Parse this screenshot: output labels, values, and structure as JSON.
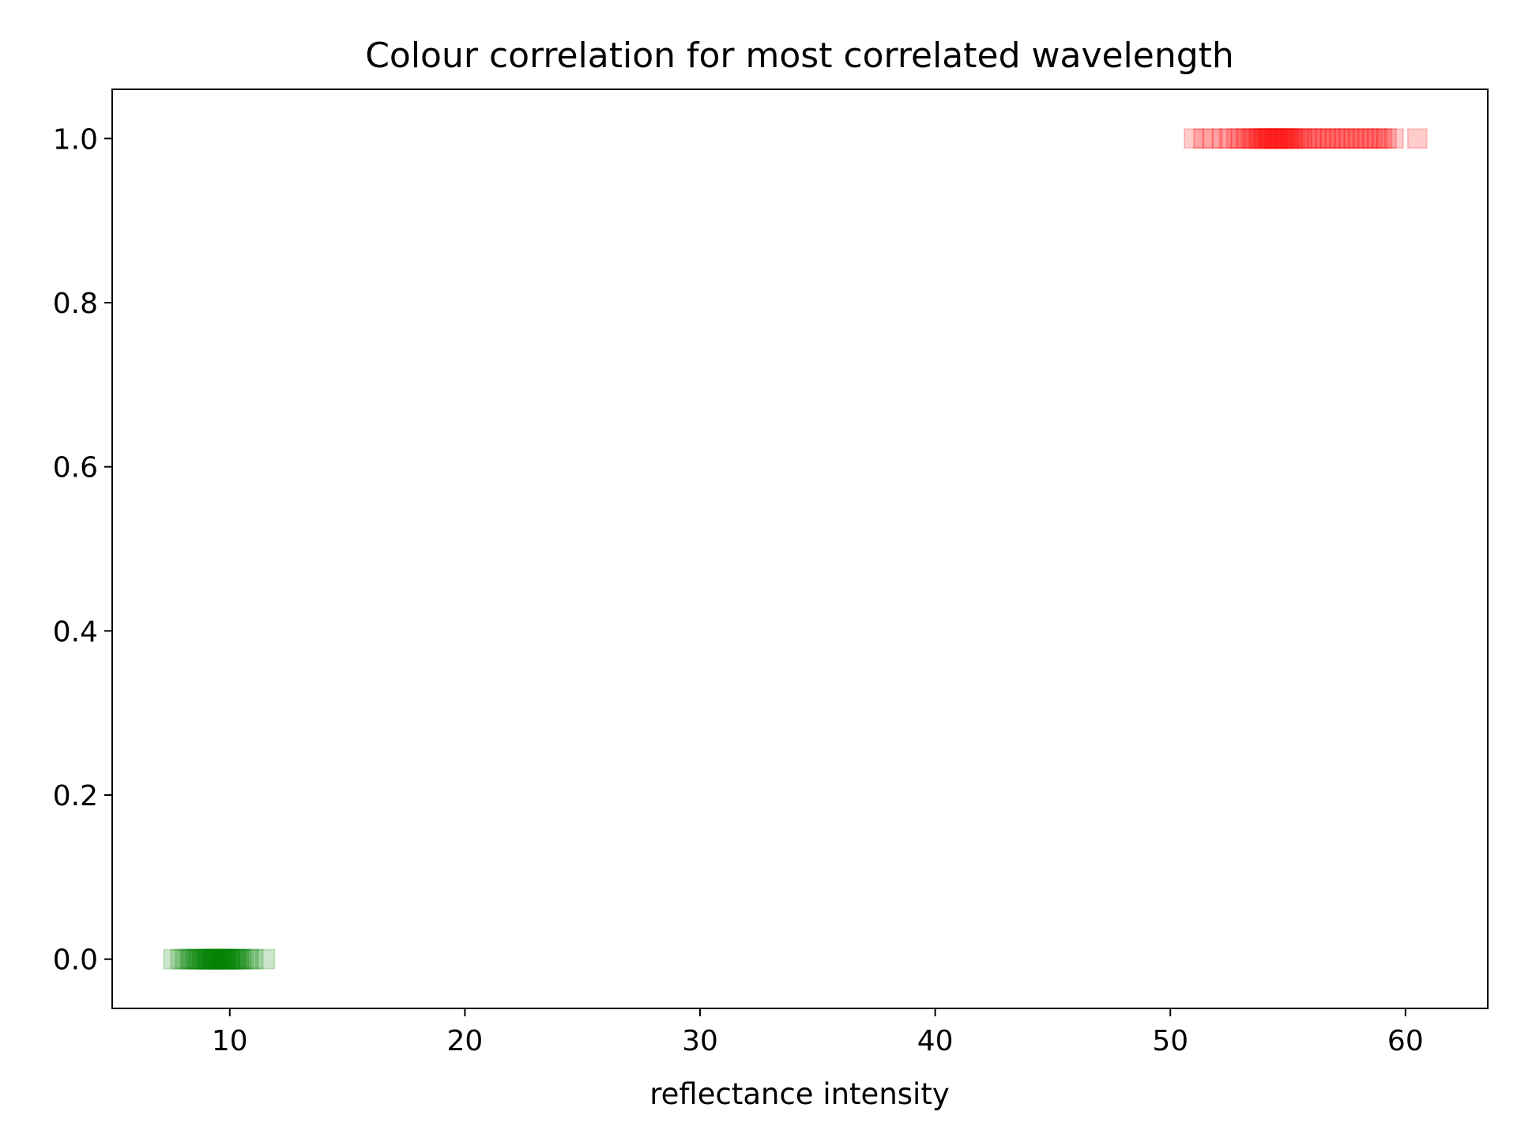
{
  "chart_data": {
    "type": "scatter",
    "title": "Colour correlation for most correlated wavelength",
    "xlabel": "reflectance intensity",
    "ylabel": "",
    "xlim": [
      5,
      63.5
    ],
    "ylim": [
      -0.06,
      1.06
    ],
    "xticks": [
      10,
      20,
      30,
      40,
      50,
      60
    ],
    "yticks": [
      0.0,
      0.2,
      0.4,
      0.6,
      0.8,
      1.0
    ],
    "xtick_labels": [
      "10",
      "20",
      "30",
      "40",
      "50",
      "60"
    ],
    "ytick_labels": [
      "0.0",
      "0.2",
      "0.4",
      "0.6",
      "0.8",
      "1.0"
    ],
    "grid": false,
    "legend": "none",
    "marker": "square",
    "marker_alpha": 0.2,
    "series": [
      {
        "color": "#008000",
        "y": 0,
        "x": [
          7.6,
          7.9,
          8.1,
          8.3,
          8.4,
          8.5,
          8.6,
          8.7,
          8.8,
          8.9,
          9.0,
          9.0,
          9.1,
          9.2,
          9.2,
          9.3,
          9.3,
          9.4,
          9.4,
          9.5,
          9.5,
          9.6,
          9.6,
          9.7,
          9.7,
          9.8,
          9.8,
          9.9,
          10.0,
          10.0,
          10.1,
          10.2,
          10.3,
          10.4,
          10.5,
          10.6,
          10.8,
          11.0,
          11.5
        ]
      },
      {
        "color": "#ff0000",
        "y": 1,
        "x": [
          51.0,
          51.4,
          51.8,
          52.2,
          52.5,
          52.8,
          53.0,
          53.2,
          53.4,
          53.5,
          53.7,
          53.8,
          53.9,
          54.0,
          54.1,
          54.2,
          54.3,
          54.4,
          54.5,
          54.6,
          54.7,
          54.8,
          54.9,
          55.0,
          55.1,
          55.2,
          55.3,
          55.5,
          55.6,
          55.8,
          56.0,
          56.2,
          56.4,
          56.6,
          56.8,
          57.0,
          57.2,
          57.4,
          57.6,
          57.8,
          58.0,
          58.2,
          58.4,
          58.6,
          58.8,
          59.0,
          59.2,
          59.5,
          60.5
        ]
      }
    ]
  }
}
